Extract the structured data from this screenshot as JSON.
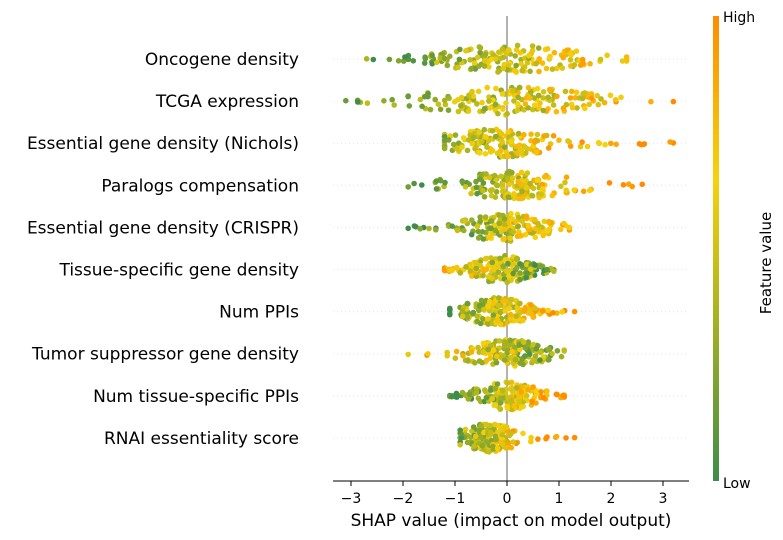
{
  "chart_data": {
    "type": "scatter",
    "subtype": "shap-beeswarm",
    "xlabel": "SHAP value (impact on model output)",
    "xlim": [
      -3.4,
      3.5
    ],
    "xticks": [
      -3,
      -2,
      -1,
      0,
      1,
      2,
      3
    ],
    "xtick_labels": [
      "−3",
      "−2",
      "−1",
      "0",
      "1",
      "2",
      "3"
    ],
    "colorbar": {
      "label": "Feature value",
      "high_label": "High",
      "low_label": "Low",
      "colors": [
        "#3d8c4a",
        "#b5b71b",
        "#f5d20c",
        "#ff8c00"
      ]
    },
    "features": [
      {
        "name": "Oncogene density",
        "min": -2.7,
        "max": 2.3,
        "center": 0.1,
        "spread": 0.9,
        "color_bias": 0.5
      },
      {
        "name": "TCGA expression",
        "min": -3.1,
        "max": 3.2,
        "center": 0.0,
        "spread": 0.9,
        "color_bias": 0.55
      },
      {
        "name": "Essential gene density (Nichols)",
        "min": -1.2,
        "max": 3.2,
        "center": -0.2,
        "spread": 0.6,
        "color_bias": 0.6
      },
      {
        "name": "Paralogs compensation",
        "min": -1.9,
        "max": 2.6,
        "center": 0.1,
        "spread": 0.5,
        "color_bias": 0.75
      },
      {
        "name": "Essential gene density (CRISPR)",
        "min": -1.9,
        "max": 1.2,
        "center": 0.0,
        "spread": 0.5,
        "color_bias": 0.6
      },
      {
        "name": "Tissue-specific gene density",
        "min": -1.2,
        "max": 0.9,
        "center": -0.1,
        "spread": 0.5,
        "color_bias": 0.25
      },
      {
        "name": "Num PPIs",
        "min": -1.1,
        "max": 1.3,
        "center": -0.2,
        "spread": 0.45,
        "color_bias": 0.55
      },
      {
        "name": "Tumor suppressor gene density",
        "min": -1.9,
        "max": 1.1,
        "center": 0.0,
        "spread": 0.4,
        "color_bias": 0.45
      },
      {
        "name": "Num tissue-specific PPIs",
        "min": -1.1,
        "max": 1.1,
        "center": 0.0,
        "spread": 0.45,
        "color_bias": 0.7
      },
      {
        "name": "RNAI essentiality score",
        "min": -0.9,
        "max": 1.3,
        "center": -0.35,
        "spread": 0.25,
        "color_bias": 0.65
      }
    ]
  }
}
